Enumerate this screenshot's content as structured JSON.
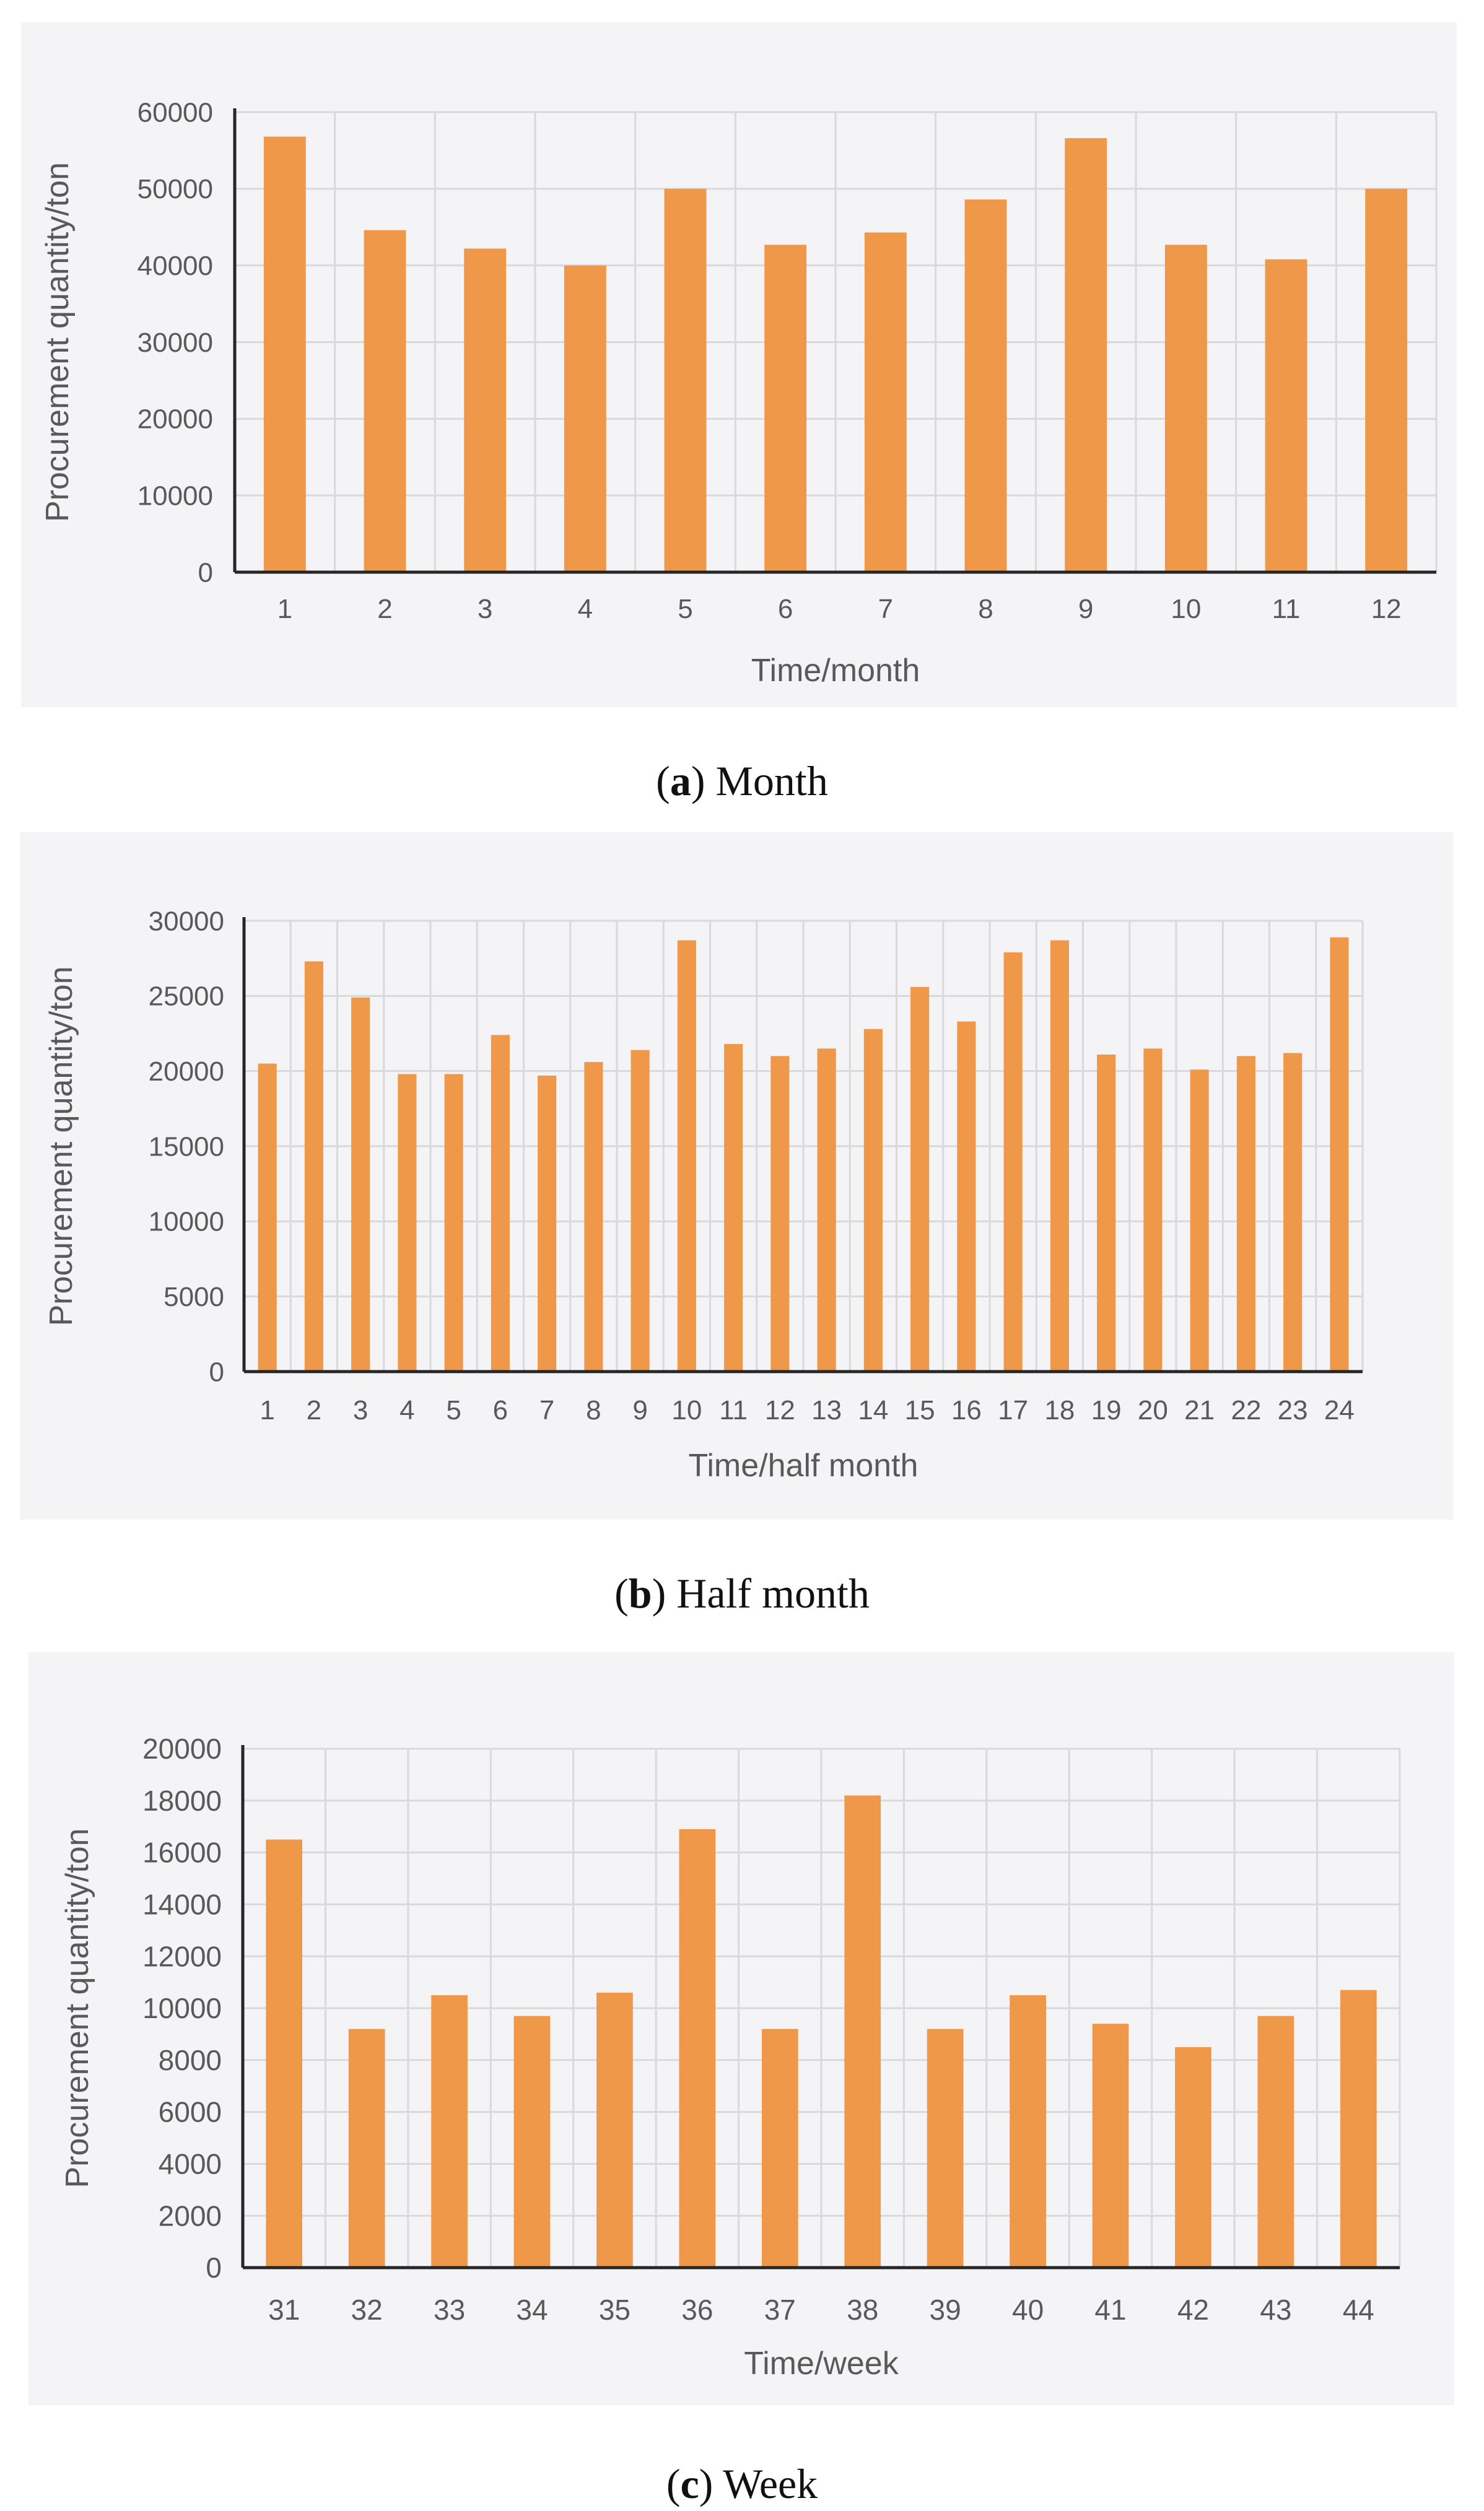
{
  "colors": {
    "bar": "#F0984A",
    "panel_bg": "#F4F4F6",
    "grid": "#D9D9D9",
    "axis": "#262626",
    "text": "#595959"
  },
  "captions": [
    {
      "letter": "a",
      "text": "Month"
    },
    {
      "letter": "b",
      "text": "Half month"
    },
    {
      "letter": "c",
      "text": "Week"
    }
  ],
  "chart_data": [
    {
      "type": "bar",
      "title": "",
      "xlabel": "Time/month",
      "ylabel": "Procurement quantity/ton",
      "ylim": [
        0,
        60000
      ],
      "yticks": [
        0,
        10000,
        20000,
        30000,
        40000,
        50000,
        60000
      ],
      "grid": true,
      "categories": [
        "1",
        "2",
        "3",
        "4",
        "5",
        "6",
        "7",
        "8",
        "9",
        "10",
        "11",
        "12"
      ],
      "values": [
        56800,
        44600,
        42200,
        40000,
        50000,
        42700,
        44300,
        48600,
        56600,
        42700,
        40800,
        50000
      ]
    },
    {
      "type": "bar",
      "title": "",
      "xlabel": "Time/half month",
      "ylabel": "Procurement quantity/ton",
      "ylim": [
        0,
        30000
      ],
      "yticks": [
        0,
        5000,
        10000,
        15000,
        20000,
        25000,
        30000
      ],
      "grid": true,
      "categories": [
        "1",
        "2",
        "3",
        "4",
        "5",
        "6",
        "7",
        "8",
        "9",
        "10",
        "11",
        "12",
        "13",
        "14",
        "15",
        "16",
        "17",
        "18",
        "19",
        "20",
        "21",
        "22",
        "23",
        "24"
      ],
      "values": [
        20500,
        27300,
        24900,
        19800,
        19800,
        22400,
        19700,
        20600,
        21400,
        28700,
        21800,
        21000,
        21500,
        22800,
        25600,
        23300,
        27900,
        28700,
        21100,
        21500,
        20100,
        21000,
        21200,
        28900
      ]
    },
    {
      "type": "bar",
      "title": "",
      "xlabel": "Time/week",
      "ylabel": "Procurement quantity/ton",
      "ylim": [
        0,
        20000
      ],
      "yticks": [
        0,
        2000,
        4000,
        6000,
        8000,
        10000,
        12000,
        14000,
        16000,
        18000,
        20000
      ],
      "grid": true,
      "categories": [
        "31",
        "32",
        "33",
        "34",
        "35",
        "36",
        "37",
        "38",
        "39",
        "40",
        "41",
        "42",
        "43",
        "44"
      ],
      "values": [
        16500,
        9200,
        10500,
        9700,
        10600,
        16900,
        9200,
        18200,
        9200,
        10500,
        9400,
        8500,
        9700,
        10700
      ]
    }
  ]
}
